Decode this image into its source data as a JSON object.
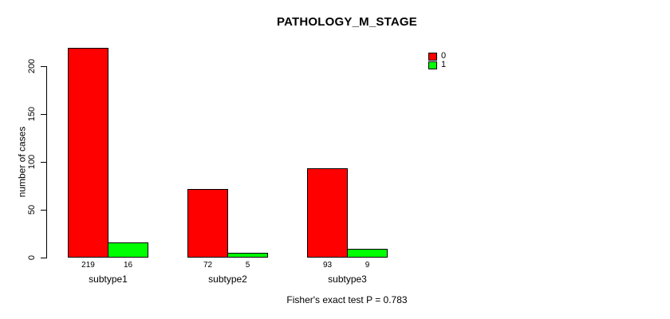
{
  "chart_data": {
    "type": "bar",
    "title": "PATHOLOGY_M_STAGE",
    "ylabel": "number of cases",
    "xlabel": "",
    "categories": [
      "subtype1",
      "subtype2",
      "subtype3"
    ],
    "series": [
      {
        "name": "0",
        "color": "#FF0000",
        "values": [
          219,
          72,
          93
        ]
      },
      {
        "name": "1",
        "color": "#00FF00",
        "values": [
          16,
          5,
          9
        ]
      }
    ],
    "ylim": [
      0,
      220
    ],
    "yticks": [
      0,
      50,
      100,
      150,
      200
    ],
    "grid": false,
    "legend_position": "top-right",
    "bar_border_color": "#000000",
    "annotation": "Fisher's exact test P = 0.783"
  }
}
